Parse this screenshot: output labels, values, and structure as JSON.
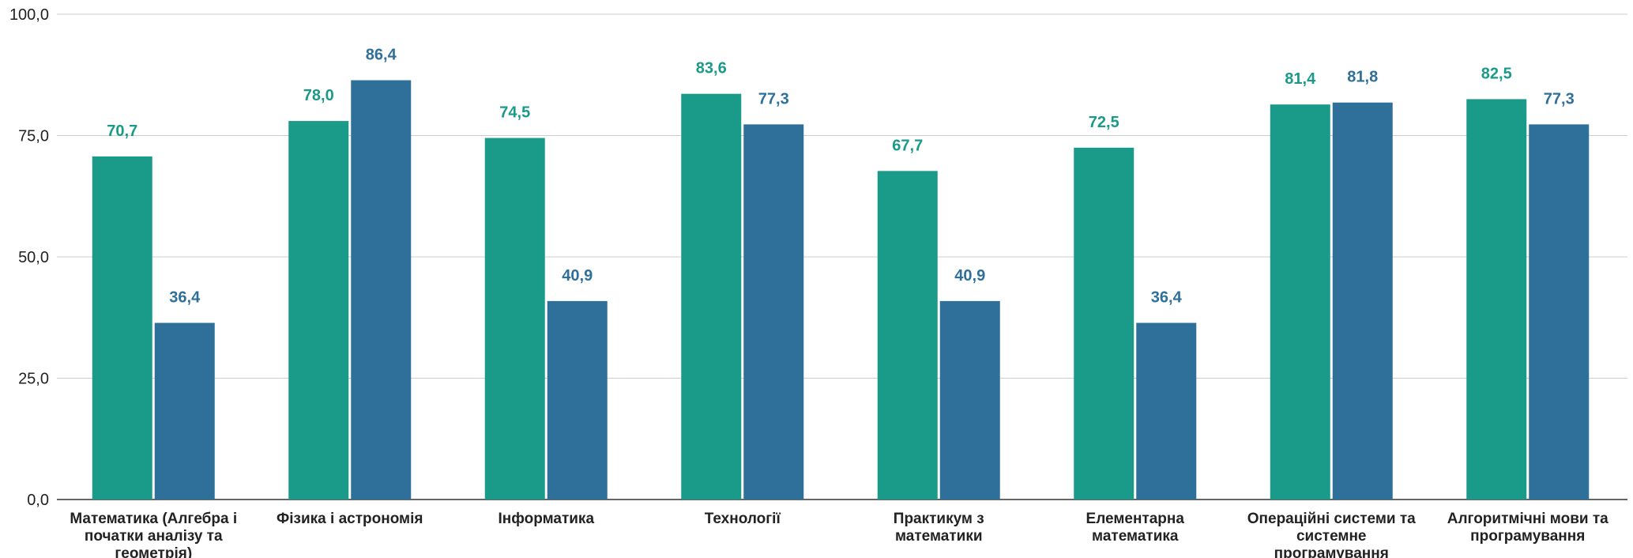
{
  "chart_data": {
    "type": "bar",
    "categories": [
      [
        "Математика (Алгебра і",
        "початки аналізу та",
        "геометрія)"
      ],
      [
        "Фізика і астрономія"
      ],
      [
        "Інформатика"
      ],
      [
        "Технології"
      ],
      [
        "Практикум з",
        "математики"
      ],
      [
        "Елементарна",
        "математика"
      ],
      [
        "Операційні системи та",
        "системне",
        "програмування"
      ],
      [
        "Алгоритмічні мови та",
        "програмування"
      ]
    ],
    "series": [
      {
        "color": "#1a9a88",
        "values": [
          70.7,
          78.0,
          74.5,
          83.6,
          67.7,
          72.5,
          81.4,
          82.5
        ],
        "labels": [
          "70,7",
          "78,0",
          "74,5",
          "83,6",
          "67,7",
          "72,5",
          "81,4",
          "82,5"
        ]
      },
      {
        "color": "#2e7099",
        "values": [
          36.4,
          86.4,
          40.9,
          77.3,
          40.9,
          36.4,
          81.8,
          77.3
        ],
        "labels": [
          "36,4",
          "86,4",
          "40,9",
          "77,3",
          "40,9",
          "36,4",
          "81,8",
          "77,3"
        ]
      }
    ],
    "ylim": [
      0,
      100
    ],
    "yticks": [
      0,
      25,
      50,
      75,
      100
    ],
    "ytick_labels": [
      "0,0",
      "25,0",
      "50,0",
      "75,0",
      "100,0"
    ],
    "grid": true,
    "legend": "none",
    "title": "",
    "xlabel": "",
    "ylabel": ""
  }
}
